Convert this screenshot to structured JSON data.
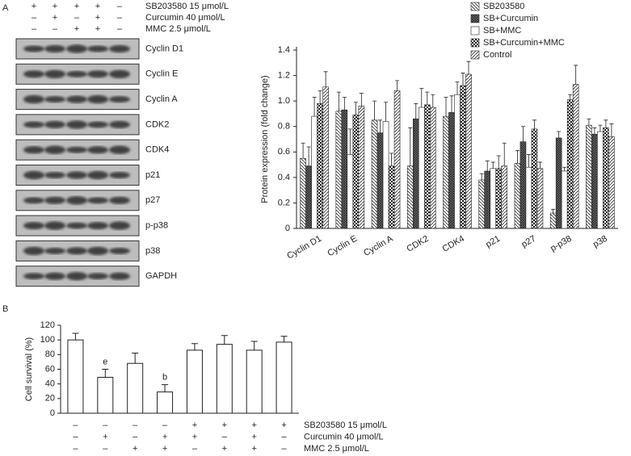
{
  "panel_labels": [
    "A",
    "B"
  ],
  "blot": {
    "treatments": [
      {
        "label": "SB203580 15 μmol/L",
        "signs": [
          "+",
          "+",
          "+",
          "+",
          "–"
        ]
      },
      {
        "label": "Curcumin 40 μmol/L",
        "signs": [
          "–",
          "+",
          "–",
          "+",
          "–"
        ]
      },
      {
        "label": "MMC 2.5 μmol/L",
        "signs": [
          "–",
          "–",
          "+",
          "+",
          "–"
        ]
      }
    ],
    "proteins": [
      "Cyclin D1",
      "Cyclin E",
      "Cyclin A",
      "CDK2",
      "CDK4",
      "p21",
      "p27",
      "p-p38",
      "p38",
      "GAPDH"
    ]
  },
  "chart_data": [
    {
      "type": "grouped-bar",
      "y_label": "Protein expression (fold change)",
      "categories": [
        "Cyclin D1",
        "Cyclin E",
        "Cyclin A",
        "CDK2",
        "CDK4",
        "p21",
        "p27",
        "p-p38",
        "p38"
      ],
      "series": [
        {
          "name": "SB203580",
          "pattern": "diag-left",
          "values": [
            0.55,
            0.92,
            0.85,
            0.49,
            0.88,
            0.38,
            0.51,
            0.12,
            0.81
          ],
          "errors": [
            0.12,
            0.15,
            0.15,
            0.3,
            0.15,
            0.05,
            0.1,
            0.03,
            0.05
          ]
        },
        {
          "name": "SB+Curcumin",
          "pattern": "cross",
          "values": [
            0.49,
            0.93,
            0.75,
            0.86,
            0.91,
            0.45,
            0.68,
            0.71,
            0.74
          ],
          "errors": [
            0.15,
            0.1,
            0.1,
            0.12,
            0.13,
            0.08,
            0.12,
            0.05,
            0.05
          ]
        },
        {
          "name": "SB+MMC",
          "pattern": "blank",
          "values": [
            0.88,
            0.58,
            0.84,
            0.95,
            1.05,
            0.47,
            0.48,
            0.45,
            0.76
          ],
          "errors": [
            0.15,
            0.2,
            0.15,
            0.15,
            0.1,
            0.05,
            0.1,
            0.03,
            0.05
          ]
        },
        {
          "name": "SB+Curcumin+MMC",
          "pattern": "checker",
          "values": [
            0.98,
            0.89,
            0.49,
            0.97,
            1.12,
            0.47,
            0.78,
            1.01,
            0.79
          ],
          "errors": [
            0.1,
            0.1,
            0.1,
            0.1,
            0.1,
            0.1,
            0.07,
            0.04,
            0.06
          ]
        },
        {
          "name": "Control",
          "pattern": "diag-right",
          "values": [
            1.11,
            0.96,
            1.08,
            0.95,
            1.21,
            0.49,
            0.47,
            1.13,
            0.72
          ],
          "errors": [
            0.12,
            0.1,
            0.08,
            0.1,
            0.1,
            0.18,
            0.05,
            0.15,
            0.1
          ]
        }
      ],
      "ylim": [
        0,
        1.4
      ],
      "yticks": [
        0,
        0.2,
        0.4,
        0.6,
        0.8,
        {
          "value": 1,
          "label": "1.0"
        },
        1.2,
        1.4
      ],
      "legend": "top-right"
    },
    {
      "type": "bar",
      "y_label": "Cell survival (%)",
      "categories": [
        null,
        null,
        null,
        null,
        null,
        null,
        null,
        null
      ],
      "values": [
        100,
        49,
        68,
        29,
        86,
        94,
        86,
        97
      ],
      "errors": [
        9,
        11,
        14,
        10,
        9,
        12,
        12,
        8
      ],
      "annotations": [
        null,
        "e",
        null,
        "b",
        null,
        null,
        null,
        null
      ],
      "color": "#ffffff",
      "ylim": [
        0,
        120
      ],
      "yticks": [
        0,
        20,
        40,
        60,
        80,
        100,
        120
      ],
      "treatments": [
        {
          "label": "SB203580 15 μmol/L",
          "signs": [
            "–",
            "–",
            "–",
            "–",
            "+",
            "+",
            "+",
            "+"
          ]
        },
        {
          "label": "Curcumin 40 μmol/L",
          "signs": [
            "–",
            "+",
            "–",
            "+",
            "+",
            "–",
            "+",
            "–"
          ]
        },
        {
          "label": "MMC 2.5 μmol/L",
          "signs": [
            "–",
            "–",
            "+",
            "+",
            "–",
            "+",
            "+",
            "–"
          ]
        }
      ]
    }
  ]
}
